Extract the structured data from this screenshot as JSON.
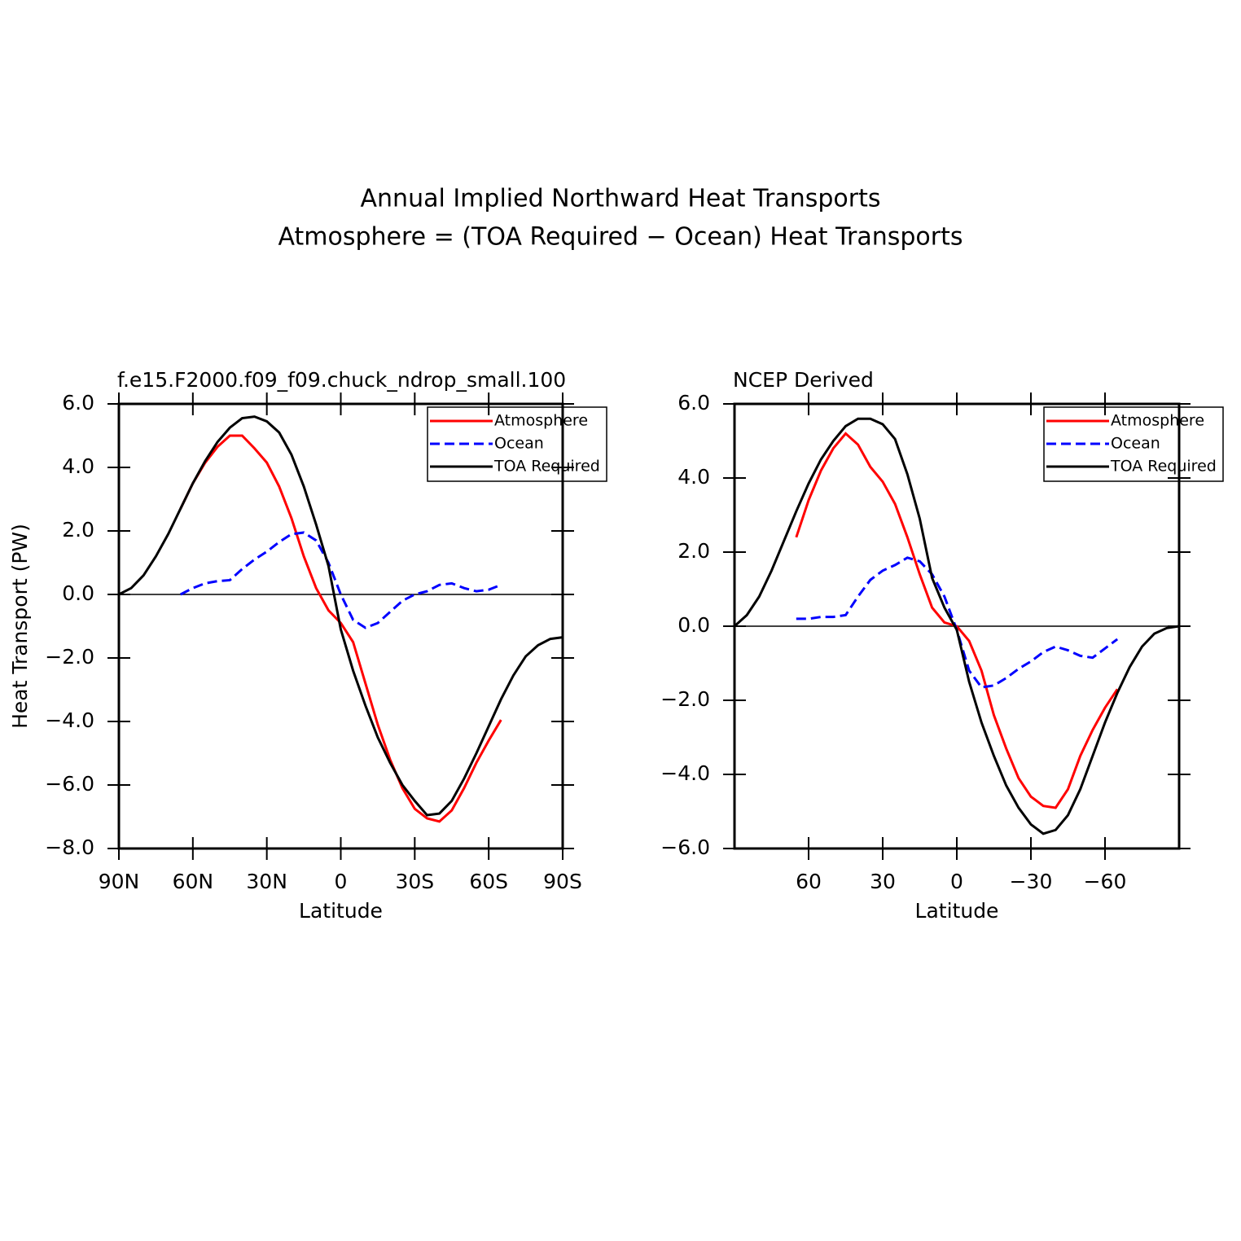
{
  "title": [
    "Annual Implied Northward Heat Transports",
    "Atmosphere = (TOA Required − Ocean) Heat Transports"
  ],
  "chart_data": [
    {
      "type": "line",
      "subtitle": "f.e15.F2000.f09_f09.chuck_ndrop_small.100",
      "xlabel": "Latitude",
      "ylabel": "Heat Transport (PW)",
      "xlim": [
        90,
        -90
      ],
      "ylim": [
        -8,
        6
      ],
      "xticks": [
        {
          "value": 90,
          "label": "90N"
        },
        {
          "value": 60,
          "label": "60N"
        },
        {
          "value": 30,
          "label": "30N"
        },
        0,
        {
          "value": -30,
          "label": "30S"
        },
        {
          "value": -60,
          "label": "60S"
        },
        {
          "value": -90,
          "label": "90S"
        }
      ],
      "yticks": [
        {
          "value": 6,
          "label": "6.0"
        },
        {
          "value": 4,
          "label": "4.0"
        },
        {
          "value": 2,
          "label": "2.0"
        },
        {
          "value": 0,
          "label": "0.0"
        },
        {
          "value": -2,
          "label": "−2.0"
        },
        {
          "value": -4,
          "label": "−4.0"
        },
        {
          "value": -6,
          "label": "−6.0"
        },
        {
          "value": -8,
          "label": "−8.0"
        }
      ],
      "legend": "upper right",
      "series": [
        {
          "name": "Atmosphere",
          "color": "#ff0000",
          "linestyle": "solid",
          "x": [
            65,
            60,
            55,
            50,
            45,
            40,
            35,
            30,
            25,
            20,
            15,
            10,
            5,
            0,
            -5,
            -10,
            -15,
            -20,
            -25,
            -30,
            -35,
            -40,
            -45,
            -50,
            -55,
            -60,
            -65
          ],
          "values": [
            2.7,
            3.5,
            4.15,
            4.65,
            5.0,
            5.0,
            4.6,
            4.15,
            3.4,
            2.4,
            1.2,
            0.2,
            -0.5,
            -0.9,
            -1.5,
            -2.8,
            -4.1,
            -5.2,
            -6.1,
            -6.75,
            -7.05,
            -7.15,
            -6.8,
            -6.1,
            -5.3,
            -4.6,
            -3.95
          ]
        },
        {
          "name": "Ocean",
          "color": "#0000ff",
          "linestyle": "dashed",
          "x": [
            65,
            60,
            55,
            50,
            45,
            40,
            35,
            30,
            25,
            20,
            15,
            10,
            5,
            0,
            -5,
            -10,
            -15,
            -20,
            -25,
            -30,
            -35,
            -40,
            -45,
            -50,
            -55,
            -60,
            -65
          ],
          "values": [
            0.0,
            0.2,
            0.35,
            0.42,
            0.45,
            0.8,
            1.1,
            1.35,
            1.65,
            1.9,
            1.95,
            1.7,
            1.0,
            0.0,
            -0.8,
            -1.05,
            -0.9,
            -0.55,
            -0.2,
            0.0,
            0.1,
            0.3,
            0.35,
            0.2,
            0.1,
            0.15,
            0.3
          ]
        },
        {
          "name": "TOA Required",
          "color": "#000000",
          "linestyle": "solid",
          "x": [
            90,
            85,
            80,
            75,
            70,
            65,
            60,
            55,
            50,
            45,
            40,
            35,
            30,
            25,
            20,
            15,
            10,
            5,
            0,
            -5,
            -10,
            -15,
            -20,
            -25,
            -30,
            -35,
            -40,
            -45,
            -50,
            -55,
            -60,
            -65,
            -70,
            -75,
            -80,
            -85,
            -90
          ],
          "values": [
            0.0,
            0.2,
            0.6,
            1.2,
            1.9,
            2.7,
            3.5,
            4.2,
            4.8,
            5.25,
            5.55,
            5.6,
            5.45,
            5.1,
            4.4,
            3.4,
            2.2,
            0.9,
            -1.1,
            -2.4,
            -3.5,
            -4.5,
            -5.3,
            -6.0,
            -6.5,
            -6.95,
            -6.9,
            -6.5,
            -5.8,
            -5.0,
            -4.15,
            -3.3,
            -2.55,
            -1.95,
            -1.6,
            -1.4,
            -1.35
          ]
        }
      ]
    },
    {
      "type": "line",
      "subtitle": "NCEP Derived",
      "xlabel": "Latitude",
      "xlim": [
        90,
        -90
      ],
      "ylim": [
        -6,
        6
      ],
      "xticks": [
        60,
        30,
        0,
        {
          "value": -30,
          "label": "−30"
        },
        {
          "value": -60,
          "label": "−60"
        }
      ],
      "yticks": [
        {
          "value": 6,
          "label": "6.0"
        },
        {
          "value": 4,
          "label": "4.0"
        },
        {
          "value": 2,
          "label": "2.0"
        },
        {
          "value": 0,
          "label": "0.0"
        },
        {
          "value": -2,
          "label": "−2.0"
        },
        {
          "value": -4,
          "label": "−4.0"
        },
        {
          "value": -6,
          "label": "−6.0"
        }
      ],
      "legend": "upper right",
      "series": [
        {
          "name": "Atmosphere",
          "color": "#ff0000",
          "linestyle": "solid",
          "x": [
            65,
            60,
            55,
            50,
            45,
            40,
            35,
            30,
            25,
            20,
            15,
            10,
            5,
            0,
            -5,
            -10,
            -15,
            -20,
            -25,
            -30,
            -35,
            -40,
            -45,
            -50,
            -55,
            -60,
            -65
          ],
          "values": [
            2.4,
            3.4,
            4.2,
            4.8,
            5.2,
            4.9,
            4.3,
            3.9,
            3.3,
            2.4,
            1.4,
            0.5,
            0.1,
            0.0,
            -0.4,
            -1.2,
            -2.4,
            -3.3,
            -4.1,
            -4.6,
            -4.85,
            -4.9,
            -4.4,
            -3.5,
            -2.8,
            -2.2,
            -1.7
          ]
        },
        {
          "name": "Ocean",
          "color": "#0000ff",
          "linestyle": "dashed",
          "x": [
            65,
            60,
            55,
            50,
            45,
            40,
            35,
            30,
            25,
            20,
            15,
            10,
            5,
            0,
            -5,
            -10,
            -15,
            -20,
            -25,
            -30,
            -35,
            -40,
            -45,
            -50,
            -55,
            -60,
            -65
          ],
          "values": [
            0.2,
            0.2,
            0.25,
            0.25,
            0.3,
            0.8,
            1.25,
            1.5,
            1.65,
            1.85,
            1.75,
            1.4,
            0.8,
            -0.1,
            -1.2,
            -1.65,
            -1.6,
            -1.4,
            -1.15,
            -0.95,
            -0.7,
            -0.55,
            -0.65,
            -0.8,
            -0.85,
            -0.6,
            -0.35
          ]
        },
        {
          "name": "TOA Required",
          "color": "#000000",
          "linestyle": "solid",
          "x": [
            90,
            85,
            80,
            75,
            70,
            65,
            60,
            55,
            50,
            45,
            40,
            35,
            30,
            25,
            20,
            15,
            10,
            5,
            0,
            -5,
            -10,
            -15,
            -20,
            -25,
            -30,
            -35,
            -40,
            -45,
            -50,
            -55,
            -60,
            -65,
            -70,
            -75,
            -80,
            -85,
            -90
          ],
          "values": [
            0.0,
            0.3,
            0.8,
            1.5,
            2.3,
            3.1,
            3.85,
            4.5,
            5.0,
            5.4,
            5.6,
            5.6,
            5.45,
            5.05,
            4.1,
            2.9,
            1.3,
            0.5,
            -0.1,
            -1.5,
            -2.6,
            -3.5,
            -4.3,
            -4.9,
            -5.35,
            -5.6,
            -5.5,
            -5.1,
            -4.4,
            -3.5,
            -2.6,
            -1.8,
            -1.1,
            -0.55,
            -0.2,
            -0.05,
            0.0
          ]
        }
      ]
    }
  ]
}
